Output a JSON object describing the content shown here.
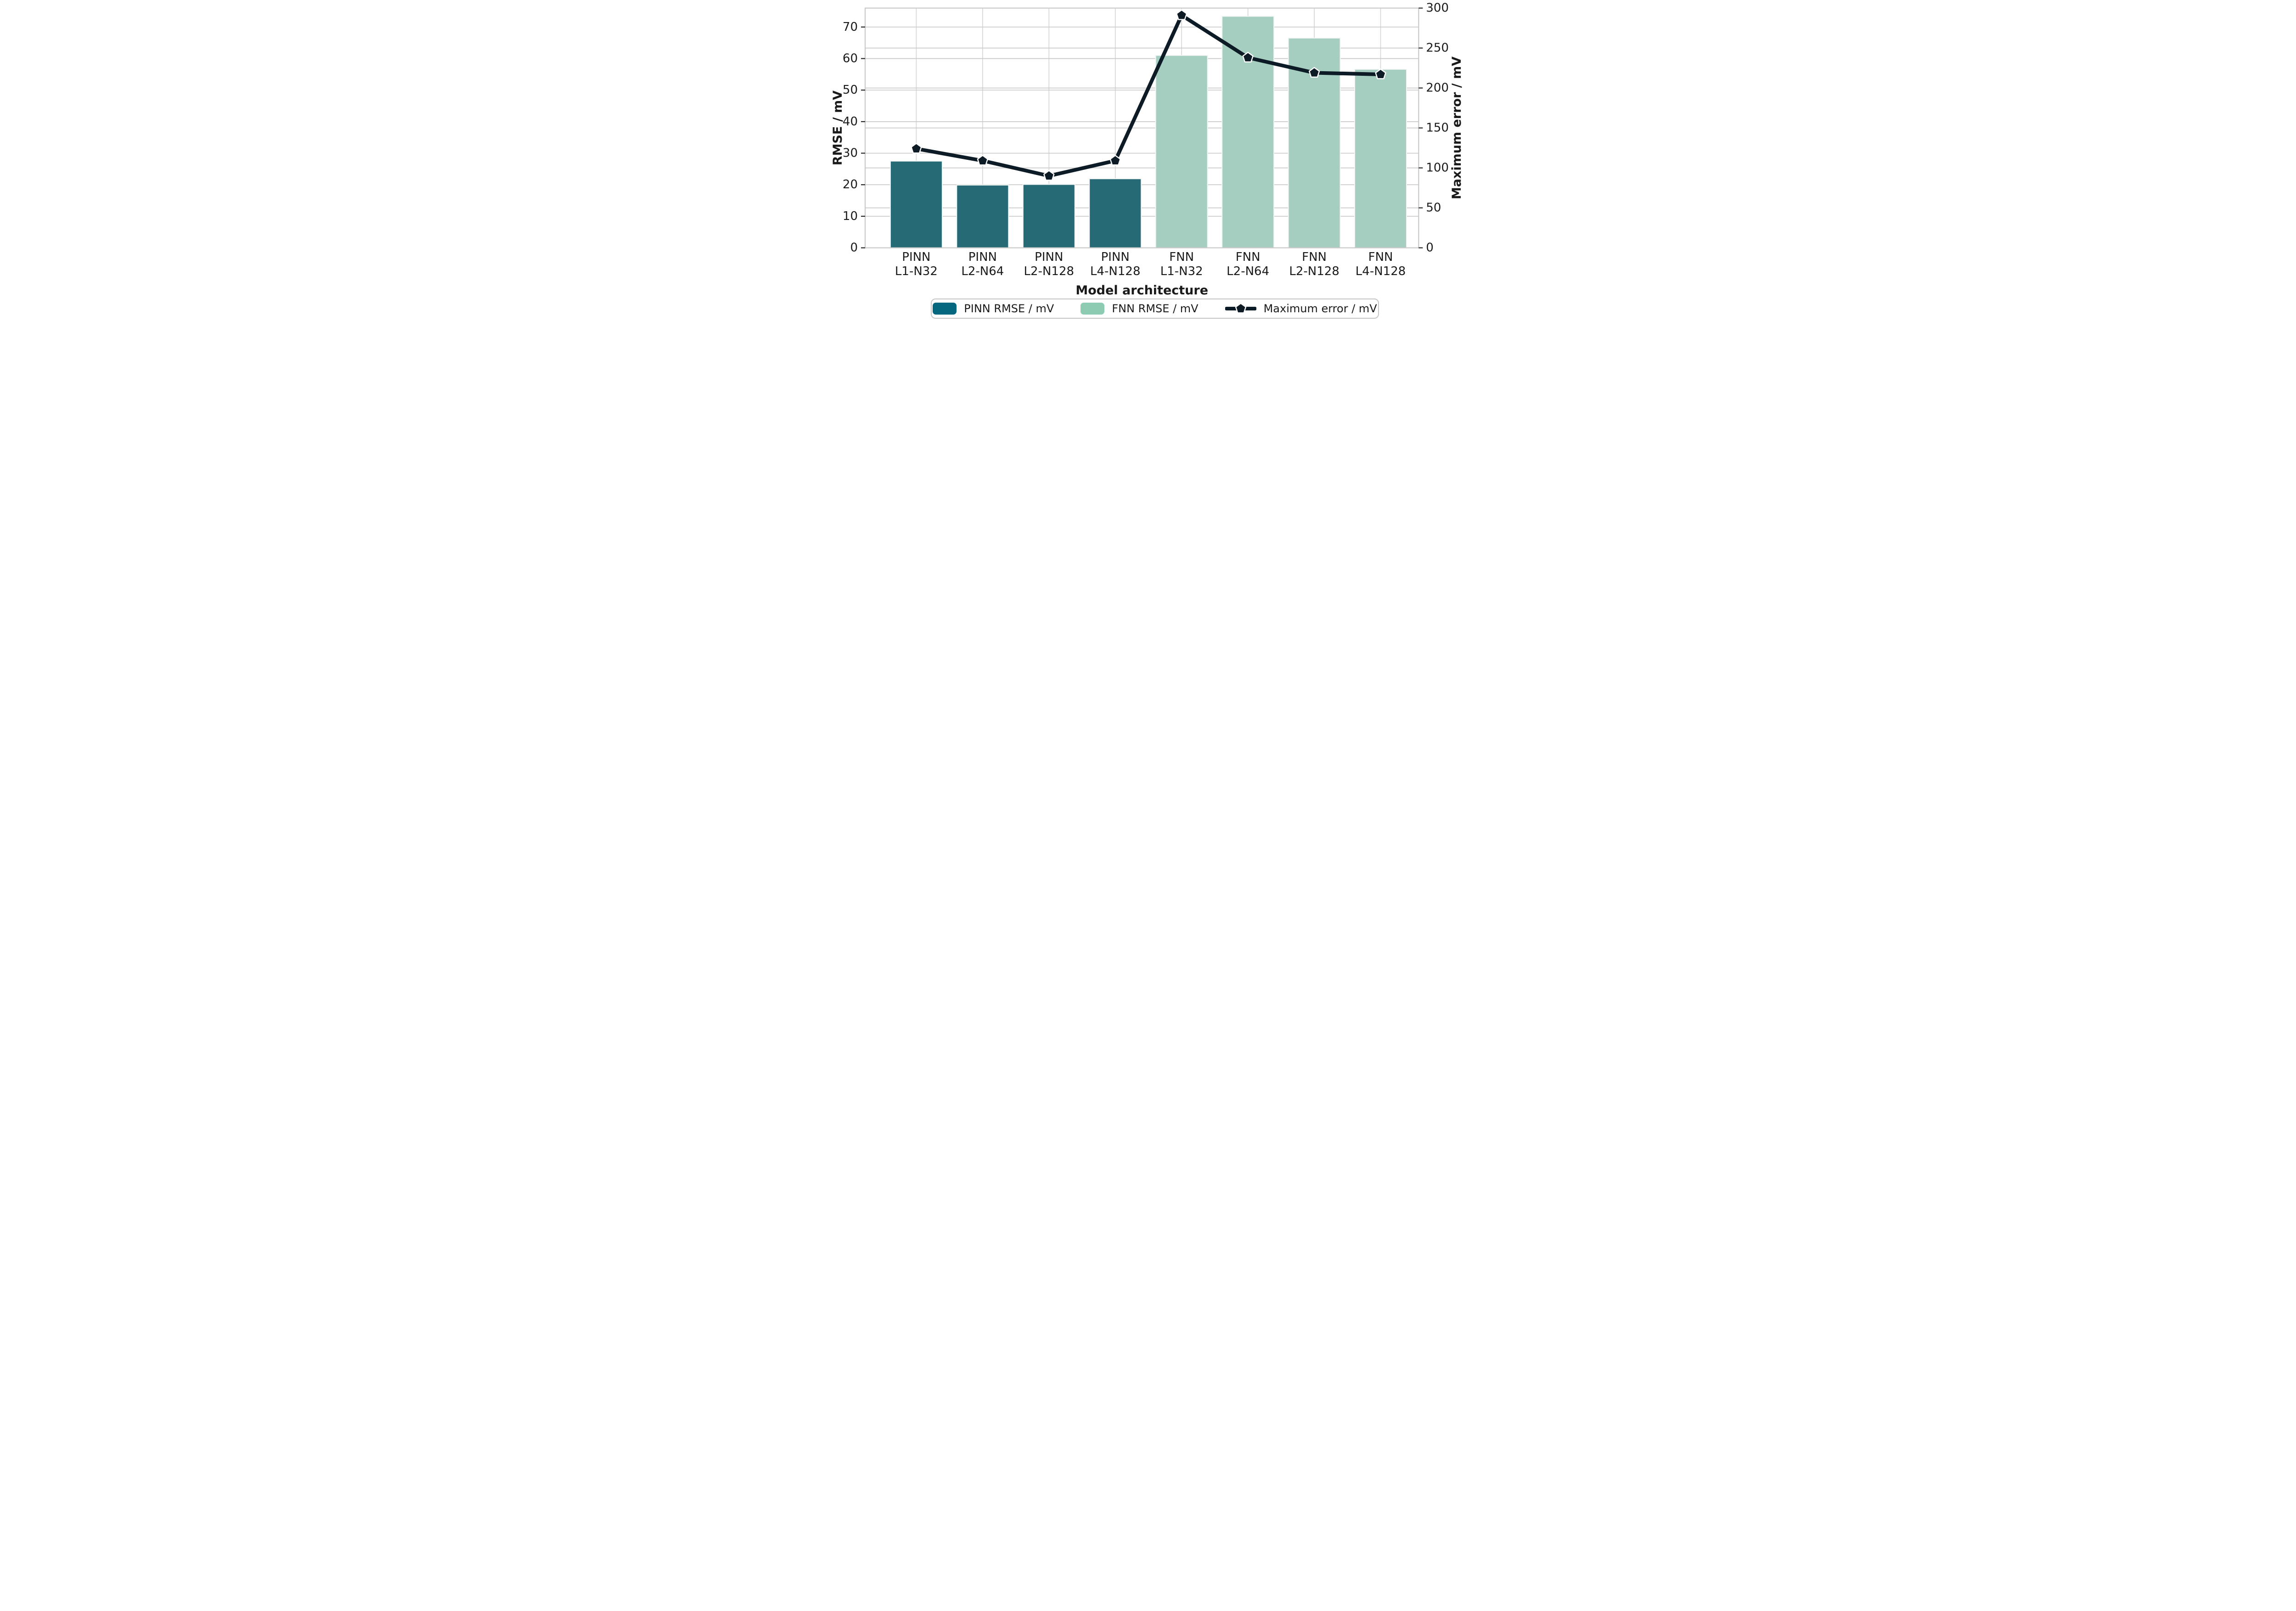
{
  "chart_data": {
    "type": "bar",
    "title": "",
    "xlabel": "Model architecture",
    "ylabel_left": "RMSE / mV",
    "ylabel_right": "Maximum error / mV",
    "ylim_left": [
      0,
      76
    ],
    "ylim_right": [
      0,
      300
    ],
    "yticks_left": [
      0,
      10,
      20,
      30,
      40,
      50,
      60,
      70
    ],
    "yticks_right": [
      0,
      50,
      100,
      150,
      200,
      250,
      300
    ],
    "grid": true,
    "legend_position": "bottom",
    "categories": [
      {
        "line1": "PINN",
        "line2": "L1-N32"
      },
      {
        "line1": "PINN",
        "line2": "L2-N64"
      },
      {
        "line1": "PINN",
        "line2": "L2-N128"
      },
      {
        "line1": "PINN",
        "line2": "L4-N128"
      },
      {
        "line1": "FNN",
        "line2": "L1-N32"
      },
      {
        "line1": "FNN",
        "line2": "L2-N64"
      },
      {
        "line1": "FNN",
        "line2": "L2-N128"
      },
      {
        "line1": "FNN",
        "line2": "L4-N128"
      }
    ],
    "series": [
      {
        "name": "PINN RMSE / mV",
        "type": "bar",
        "axis": "left",
        "color": "#266a76",
        "legend_color": "#06687e",
        "values": [
          27.5,
          19.9,
          20.1,
          21.9,
          null,
          null,
          null,
          null
        ]
      },
      {
        "name": "FNN RMSE / mV",
        "type": "bar",
        "axis": "left",
        "color": "#a6cec0",
        "legend_color": "#8dcbb3",
        "values": [
          null,
          null,
          null,
          null,
          61.0,
          73.4,
          66.5,
          56.6
        ]
      },
      {
        "name": "Maximum error / mV",
        "type": "line",
        "axis": "right",
        "marker": "pentagon",
        "color": "#0d1b26",
        "values": [
          124,
          109,
          90,
          109,
          291,
          238,
          219,
          217
        ]
      }
    ]
  },
  "colors": {
    "background": "#ffffff",
    "grid": "#c9c9c9",
    "grid_vertical": "#d4d4d4",
    "spine": "#c9c9c9",
    "tick": "#262626",
    "text": "#1a1a1a"
  }
}
